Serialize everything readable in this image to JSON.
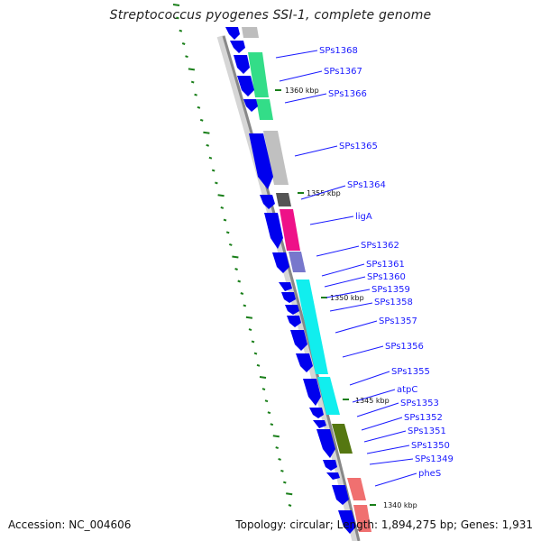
{
  "title": "Streptococcus pyogenes SSI-1, complete genome",
  "footer": {
    "accession": "Accession: NC_004606",
    "topology": "Topology: circular; Length: 1,894,275 bp; Genes: 1,931"
  },
  "colors": {
    "backbone": "#888888",
    "cds_arrow": "#0000ee",
    "leader_line": "#1a1aff",
    "tick": "#1a7f1a"
  },
  "scale_labels": [
    "1360 kbp",
    "1355 kbp",
    "1350 kbp",
    "1345 kbp",
    "1340 kbp"
  ],
  "genes": [
    "SPs1368",
    "SPs1367",
    "SPs1366",
    "SPs1365",
    "SPs1364",
    "ligA",
    "SPs1362",
    "SPs1361",
    "SPs1360",
    "SPs1359",
    "SPs1358",
    "SPs1357",
    "SPs1356",
    "SPs1355",
    "atpC",
    "SPs1353",
    "SPs1352",
    "SPs1351",
    "SPs1350",
    "SPs1349",
    "pheS"
  ]
}
